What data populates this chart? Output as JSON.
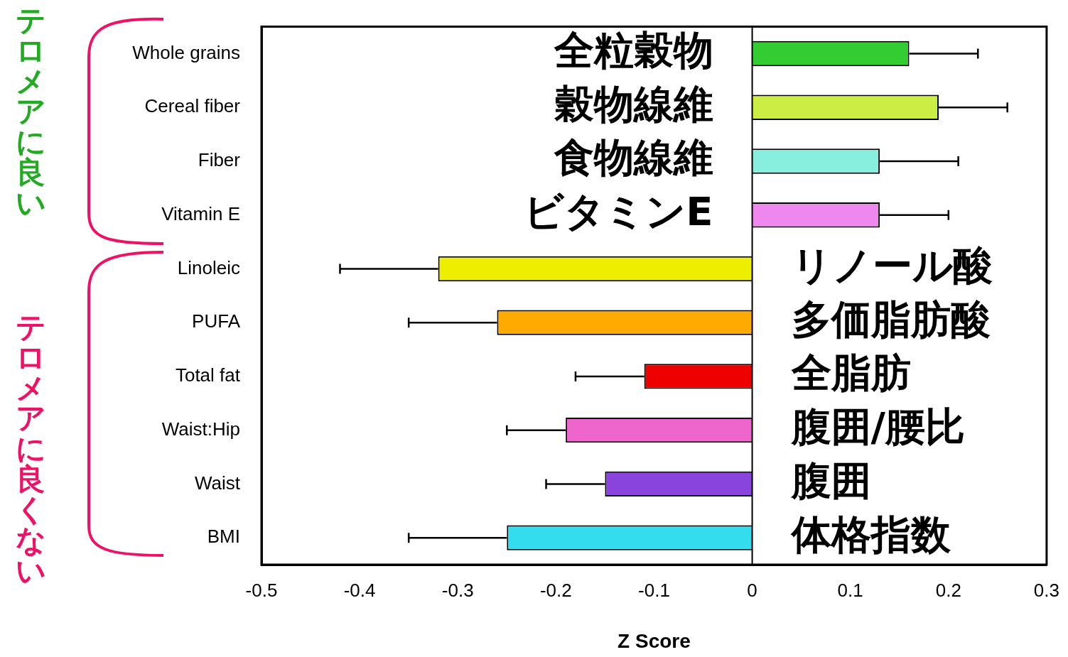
{
  "chart_data": {
    "type": "bar",
    "orientation": "horizontal",
    "xlabel": "Z Score",
    "categories": [
      "Whole grains",
      "Cereal fiber",
      "Fiber",
      "Vitamin E",
      "Linoleic",
      "PUFA",
      "Total fat",
      "Waist:Hip",
      "Waist",
      "BMI"
    ],
    "values": [
      0.16,
      0.19,
      0.13,
      0.13,
      -0.32,
      -0.26,
      -0.11,
      -0.19,
      -0.15,
      -0.25
    ],
    "errors": [
      [
        0.16,
        0.23
      ],
      [
        0.19,
        0.26
      ],
      [
        0.13,
        0.21
      ],
      [
        0.13,
        0.2
      ],
      [
        -0.42,
        -0.32
      ],
      [
        -0.35,
        -0.26
      ],
      [
        -0.18,
        -0.11
      ],
      [
        -0.25,
        -0.19
      ],
      [
        -0.21,
        -0.15
      ],
      [
        -0.35,
        -0.25
      ]
    ],
    "colors": [
      "#33cc33",
      "#ccee44",
      "#88eedd",
      "#ee88ee",
      "#eeee00",
      "#ffaa00",
      "#ee0000",
      "#ee66cc",
      "#8844dd",
      "#33ddee"
    ],
    "xlim": [
      -0.5,
      0.3
    ],
    "xticks": [
      -0.5,
      -0.4,
      -0.3,
      -0.2,
      -0.1,
      0,
      0.1,
      0.2,
      0.3
    ],
    "ref_lines": [
      {
        "axis": "x",
        "value": 0,
        "color": "#000000"
      }
    ],
    "grid": false,
    "legend": false,
    "annotations": [
      "全粒穀物",
      "穀物線維",
      "食物線維",
      "ビタミンE",
      "リノール酸",
      "多価脂肪酸",
      "全脂肪",
      "腹囲/腰比",
      "腹囲",
      "体格指数",
      "テロメアに良い",
      "テロメアに良くない"
    ]
  }
}
